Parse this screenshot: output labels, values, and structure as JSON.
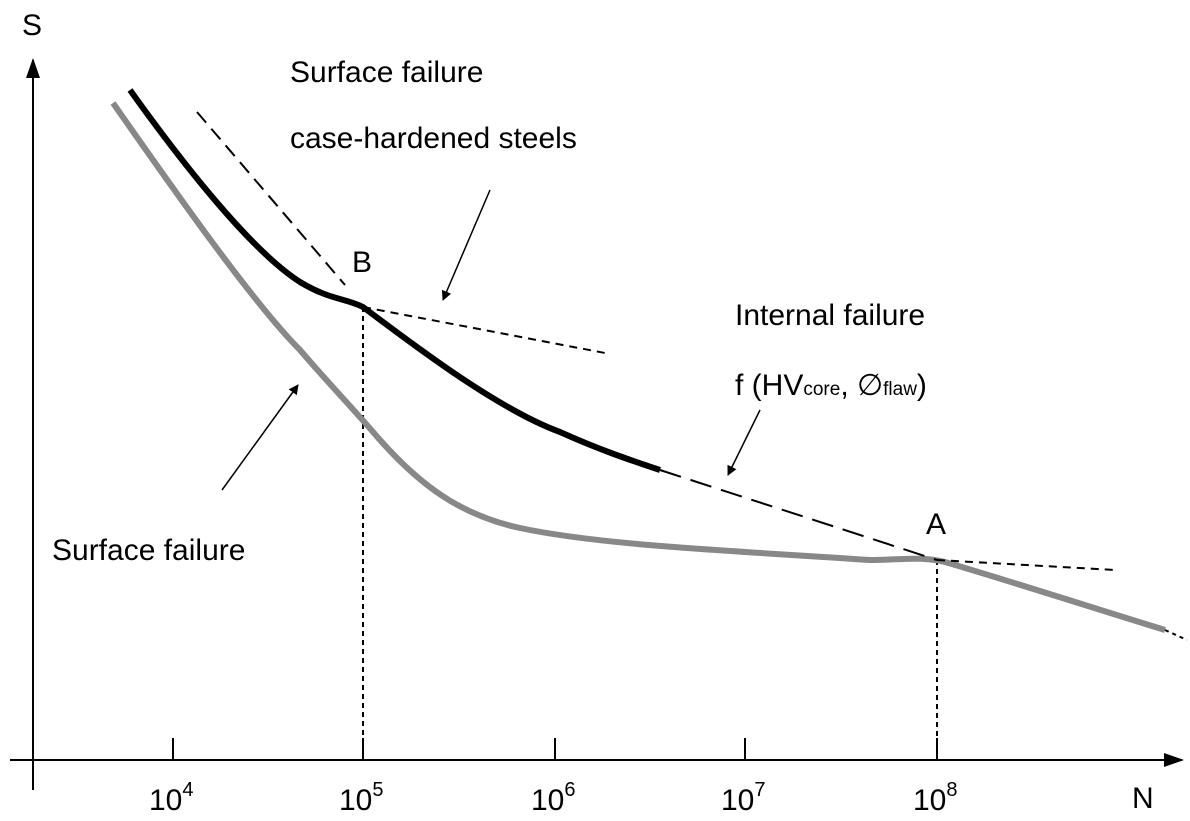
{
  "axes": {
    "y_label": "S",
    "x_label": "N",
    "x_ticks": [
      {
        "base": "10",
        "exp": "4"
      },
      {
        "base": "10",
        "exp": "5"
      },
      {
        "base": "10",
        "exp": "6"
      },
      {
        "base": "10",
        "exp": "7"
      },
      {
        "base": "10",
        "exp": "8"
      }
    ]
  },
  "points": {
    "b": "B",
    "a": "A"
  },
  "annotations": {
    "surface_case": [
      "Surface failure",
      "case-hardened steels"
    ],
    "internal": {
      "title": "Internal failure",
      "formula": {
        "prefix": "f (HV",
        "sub1": "core",
        "middle": ", ∅",
        "sub2": "flaw",
        "suffix": ")"
      }
    },
    "surface": "Surface failure"
  }
}
